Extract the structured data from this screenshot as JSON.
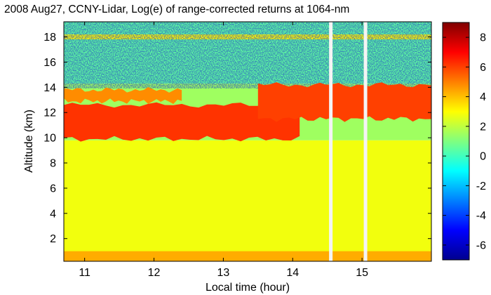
{
  "chart_data": {
    "type": "heatmap",
    "title": "2008 Aug27, CCNY-Lidar, Log(e) of range-corrected returns at 1064-nm",
    "xlabel": "Local time (hour)",
    "ylabel": "Altitude (km)",
    "xlim": [
      10.7,
      16.0
    ],
    "ylim": [
      0.2,
      19.2
    ],
    "x_ticks": [
      11,
      12,
      13,
      14,
      15
    ],
    "x_tick_labels": [
      "11",
      "12",
      "13",
      "14",
      "15"
    ],
    "y_ticks": [
      2,
      4,
      6,
      8,
      10,
      12,
      14,
      16,
      18
    ],
    "y_tick_labels": [
      "2",
      "4",
      "6",
      "8",
      "10",
      "12",
      "14",
      "16",
      "18"
    ],
    "colorbar": {
      "range": [
        -7,
        9
      ],
      "ticks": [
        -6,
        -4,
        -2,
        0,
        2,
        4,
        6,
        8
      ],
      "tick_labels": [
        "-6",
        "-4",
        "-2",
        "0",
        "2",
        "4",
        "6",
        "8"
      ],
      "colormap": "jet"
    },
    "features": {
      "surface_layer": {
        "alt_top": 1.0,
        "value": 4.3
      },
      "boundary_layer": {
        "alt_top": 9.8,
        "value": 2.8
      },
      "free_troposphere": {
        "alt_bottom": 9.8,
        "alt_top": 14.3,
        "value": 1.5
      },
      "upper_noise_region": {
        "alt_bottom": 14.3,
        "alt_top": 19.2,
        "value": 0.5
      },
      "cloud_layers": [
        {
          "name": "lower cloud",
          "t_start": 10.7,
          "t_end": 14.1,
          "alt_bottom": 9.9,
          "alt_top": 12.6,
          "value": 6.2
        },
        {
          "name": "thin upper layer",
          "t_start": 10.7,
          "t_end": 12.4,
          "alt_bottom": 12.9,
          "alt_top": 13.8,
          "value": 4.8
        },
        {
          "name": "afternoon cloud",
          "t_start": 13.5,
          "t_end": 16.0,
          "alt_bottom": 11.5,
          "alt_top": 14.2,
          "value": 6.0
        }
      ],
      "data_gaps": [
        14.55,
        15.05
      ],
      "aloft_band": {
        "alt_bottom": 17.8,
        "alt_top": 18.2,
        "value": 3.0
      }
    }
  }
}
